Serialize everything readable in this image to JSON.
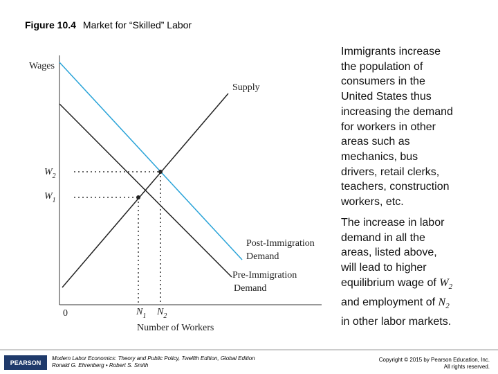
{
  "header": {
    "figure": "Figure 10.4",
    "title": "Market for “Skilled” Labor"
  },
  "diagram": {
    "y_axis_label": "Wages",
    "x_axis_label": "Number of Workers",
    "origin": "0",
    "supply_label": "Supply",
    "post_demand_label": [
      "Post-Immigration",
      "Demand"
    ],
    "pre_demand_label": [
      "Pre-Immigration",
      "Demand"
    ],
    "w2": {
      "letter": "W",
      "sub": "2"
    },
    "w1": {
      "letter": "W",
      "sub": "1"
    },
    "n1": {
      "letter": "N",
      "sub": "1"
    },
    "n2": {
      "letter": "N",
      "sub": "2"
    }
  },
  "text": {
    "paragraph1": [
      "Immigrants increase",
      "the population of",
      "consumers in the",
      "United States thus",
      "increasing the demand",
      "for workers in other",
      "areas such as",
      "mechanics, bus",
      "drivers, retail clerks,",
      "teachers, construction",
      "workers, etc."
    ],
    "paragraph2": {
      "lines": [
        "The increase in labor",
        "demand in all the",
        "areas, listed above,",
        "will lead to higher"
      ],
      "wage_line": "equilibrium wage of ",
      "wage_symbol": "W",
      "wage_sub": "2",
      "emp_line": "and employment of ",
      "emp_symbol": "N",
      "emp_sub": "2",
      "last_line": "in other labor markets."
    }
  },
  "footer": {
    "logo": "PEARSON",
    "book": "Modern Labor Economics: Theory and Public Policy, Twelfth Edition, Global Edition",
    "authors": "Ronald G. Ehrenberg • Robert S. Smith",
    "copyright": "Copyright © 2015 by Pearson Education, Inc.",
    "rights": "All rights reserved."
  }
}
